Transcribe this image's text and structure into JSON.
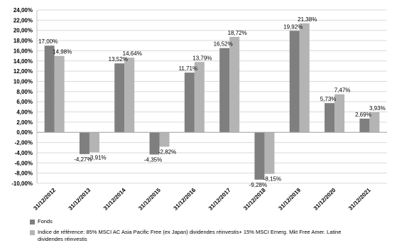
{
  "chart_data": {
    "type": "bar",
    "categories": [
      "31/12/2012",
      "31/12/2013",
      "31/12/2014",
      "31/12/2015",
      "31/12/2016",
      "31/12/2017",
      "31/12/2018",
      "31/12/2019",
      "31/12/2020",
      "31/12/2021"
    ],
    "series": [
      {
        "name": "Fonds",
        "color": "#7f7f7f",
        "values": [
          17.0,
          -4.27,
          13.52,
          -4.35,
          11.71,
          16.52,
          -9.28,
          19.92,
          5.73,
          2.69
        ],
        "labels": [
          "17,00%",
          "-4,27%",
          "13,52%",
          "-4,35%",
          "11,71%",
          "16,52%",
          "-9,28%",
          "19,92%",
          "5,73%",
          "2,69%"
        ]
      },
      {
        "name": "Indice de référence: 85% MSCI AC Asia Pacific Free (ex Japan) dividendes réinvestis+ 15% MSCI Emerg. Mkt Free Amer. Latine dividendes réinvestis",
        "color": "#b4b4b4",
        "values": [
          14.98,
          -3.91,
          14.64,
          -2.82,
          13.79,
          18.72,
          -8.15,
          21.38,
          7.47,
          3.93
        ],
        "labels": [
          "14,98%",
          "-3,91%",
          "14,64%",
          "-2,82%",
          "13,79%",
          "18,72%",
          "-8,15%",
          "21,38%",
          "7,47%",
          "3,93%"
        ]
      }
    ],
    "yticks": [
      "24,00%",
      "22,00%",
      "20,00%",
      "18,00%",
      "16,00%",
      "14,00%",
      "12,00%",
      "10,00%",
      "8,00%",
      "6,00%",
      "4,00%",
      "2,00%",
      "0,00%",
      "-2,00%",
      "-4,00%",
      "-6,00%",
      "-8,00%",
      "-10,00%"
    ],
    "ylim": [
      -10,
      24
    ],
    "grid": true,
    "legend_position": "bottom",
    "title": "",
    "xlabel": "",
    "ylabel": ""
  },
  "legend": {
    "fonds": "Fonds",
    "indice_line1": "Indice de référence: 85% MSCI AC Asia Pacific Free (ex Japan) dividendes réinvestis+ 15% MSCI Emerg. Mkt Free Amer. Latine",
    "indice_line2": "dividendes réinvestis"
  }
}
